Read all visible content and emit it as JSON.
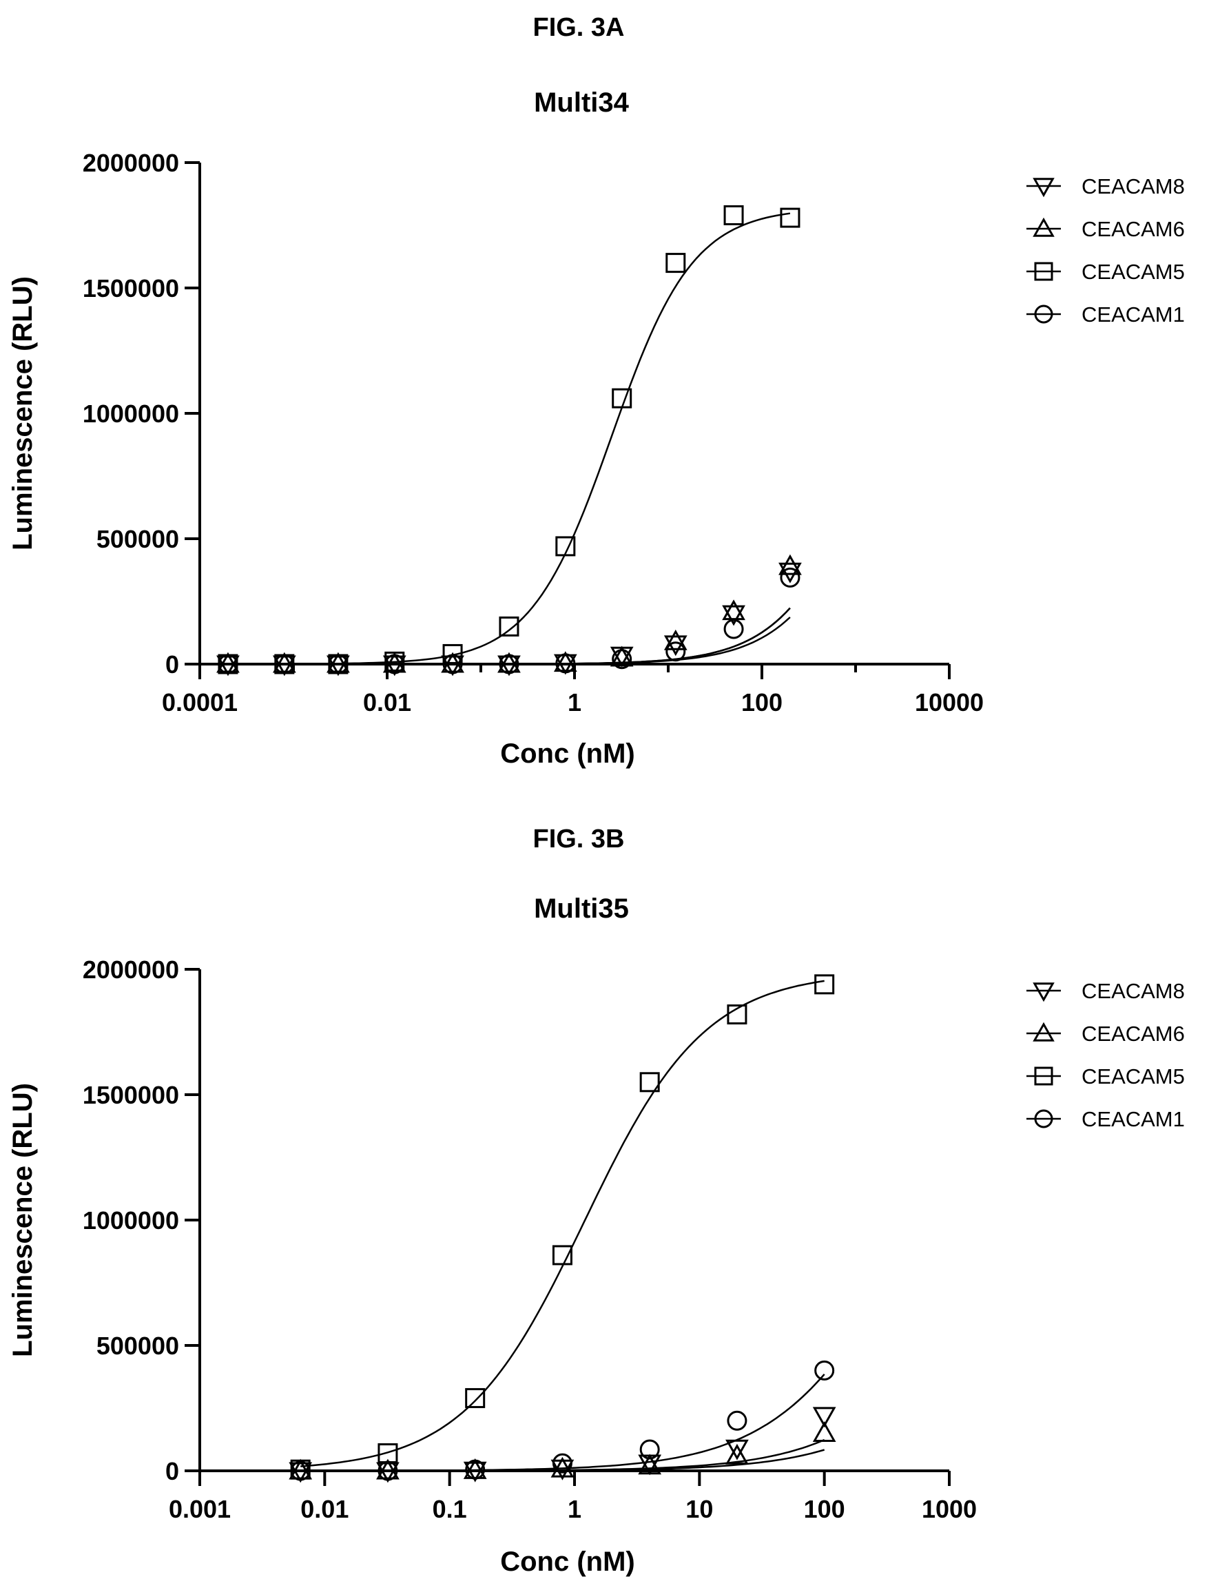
{
  "figures": [
    {
      "fig_label": "FIG. 3A"
    },
    {
      "fig_label": "FIG. 3B"
    }
  ],
  "colors": {
    "ink": "#000000",
    "background": "#ffffff"
  },
  "chart_data": [
    {
      "type": "scatter",
      "title": "Multi34",
      "xlabel": "Conc (nM)",
      "ylabel": "Luminescence (RLU)",
      "xscale": "log",
      "xlim": [
        0.0001,
        10000
      ],
      "ylim": [
        0,
        2000000
      ],
      "x_ticks": [
        0.0001,
        0.01,
        1,
        100,
        10000
      ],
      "x_tick_labels": [
        "0.0001",
        "0.01",
        "1",
        "100",
        "10000"
      ],
      "y_ticks": [
        0,
        500000,
        1000000,
        1500000,
        2000000
      ],
      "y_tick_labels": [
        "0",
        "500000",
        "1000000",
        "1500000",
        "2000000"
      ],
      "grid": false,
      "legend_position": "right-top",
      "series": [
        {
          "name": "CEACAM8",
          "marker": "triangle-down",
          "x": [
            0.0002,
            0.0008,
            0.003,
            0.012,
            0.05,
            0.2,
            0.8,
            3.2,
            12,
            50,
            200
          ],
          "y": [
            0,
            0,
            0,
            0,
            0,
            0,
            5000,
            35000,
            80000,
            200000,
            370000
          ],
          "fit": {
            "bottom": 0,
            "top": 2000000,
            "ec50": 2000,
            "hill": 0.9
          }
        },
        {
          "name": "CEACAM6",
          "marker": "triangle-up",
          "x": [
            0.0002,
            0.0008,
            0.003,
            0.012,
            0.05,
            0.2,
            0.8,
            3.2,
            12,
            50,
            200
          ],
          "y": [
            0,
            0,
            0,
            0,
            0,
            0,
            4000,
            25000,
            90000,
            210000,
            390000
          ],
          "fit": {
            "bottom": 0,
            "top": 2000000,
            "ec50": 2000,
            "hill": 0.9
          }
        },
        {
          "name": "CEACAM5",
          "marker": "square",
          "x": [
            0.0002,
            0.0008,
            0.003,
            0.012,
            0.05,
            0.2,
            0.8,
            3.2,
            12,
            50,
            200
          ],
          "y": [
            0,
            0,
            0,
            10000,
            40000,
            150000,
            470000,
            1060000,
            1600000,
            1790000,
            1780000
          ],
          "fit": {
            "bottom": 0,
            "top": 1820000,
            "ec50": 2.5,
            "hill": 1.0
          }
        },
        {
          "name": "CEACAM1",
          "marker": "circle",
          "x": [
            0.0002,
            0.0008,
            0.003,
            0.012,
            0.05,
            0.2,
            0.8,
            3.2,
            12,
            50,
            200
          ],
          "y": [
            0,
            0,
            0,
            0,
            0,
            0,
            3000,
            20000,
            50000,
            140000,
            345000
          ],
          "fit": {
            "bottom": 0,
            "top": 2000000,
            "ec50": 2500,
            "hill": 0.9
          }
        }
      ]
    },
    {
      "type": "scatter",
      "title": "Multi35",
      "xlabel": "Conc (nM)",
      "ylabel": "Luminescence (RLU)",
      "xscale": "log",
      "xlim": [
        0.001,
        1000
      ],
      "ylim": [
        0,
        2000000
      ],
      "x_ticks": [
        0.001,
        0.01,
        0.1,
        1,
        10,
        100,
        1000
      ],
      "x_tick_labels": [
        "0.001",
        "0.01",
        "0.1",
        "1",
        "10",
        "100",
        "1000"
      ],
      "y_ticks": [
        0,
        500000,
        1000000,
        1500000,
        2000000
      ],
      "y_tick_labels": [
        "0",
        "500000",
        "1000000",
        "1500000",
        "2000000"
      ],
      "grid": false,
      "legend_position": "right-top",
      "series": [
        {
          "name": "CEACAM8",
          "marker": "triangle-down",
          "x": [
            0.0064,
            0.032,
            0.16,
            0.8,
            4,
            20,
            100
          ],
          "y": [
            0,
            0,
            2000,
            10000,
            30000,
            90000,
            220000
          ],
          "fit": {
            "bottom": 0,
            "top": 2000000,
            "ec50": 3000,
            "hill": 0.8
          }
        },
        {
          "name": "CEACAM6",
          "marker": "triangle-up",
          "x": [
            0.0064,
            0.032,
            0.16,
            0.8,
            4,
            20,
            100
          ],
          "y": [
            0,
            0,
            2000,
            8000,
            20000,
            60000,
            150000
          ],
          "fit": {
            "bottom": 0,
            "top": 2000000,
            "ec50": 5000,
            "hill": 0.8
          }
        },
        {
          "name": "CEACAM5",
          "marker": "square",
          "x": [
            0.0064,
            0.032,
            0.16,
            0.8,
            4,
            20,
            100
          ],
          "y": [
            5000,
            70000,
            290000,
            860000,
            1550000,
            1820000,
            1940000
          ],
          "fit": {
            "bottom": 0,
            "top": 1990000,
            "ec50": 1.2,
            "hill": 0.9
          }
        },
        {
          "name": "CEACAM1",
          "marker": "circle",
          "x": [
            0.0064,
            0.032,
            0.16,
            0.8,
            4,
            20,
            100
          ],
          "y": [
            0,
            0,
            5000,
            30000,
            85000,
            200000,
            400000
          ],
          "fit": {
            "bottom": 0,
            "top": 2000000,
            "ec50": 600,
            "hill": 0.8
          }
        }
      ]
    }
  ]
}
